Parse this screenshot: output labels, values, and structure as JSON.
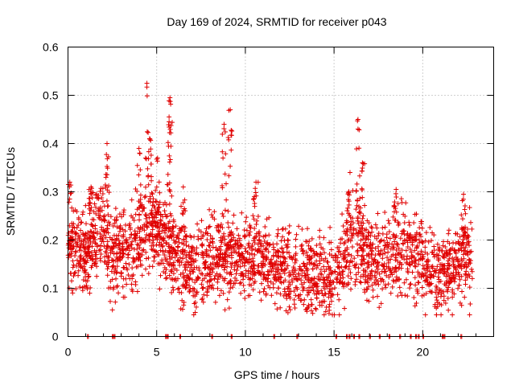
{
  "chart_data": {
    "type": "scatter",
    "title": "Day 169 of 2024, SRMTID for receiver p043",
    "xlabel": "GPS time / hours",
    "ylabel": "SRMTID / TECUs",
    "xlim": [
      0,
      24
    ],
    "ylim": [
      0,
      0.6
    ],
    "x_ticks": [
      0,
      5,
      10,
      15,
      20
    ],
    "x_tick_labels": [
      "0",
      "5",
      "10",
      "15",
      "20"
    ],
    "y_ticks": [
      0,
      0.1,
      0.2,
      0.3,
      0.4,
      0.5,
      0.6
    ],
    "y_tick_labels": [
      "0",
      "0.1",
      "0.2",
      "0.3",
      "0.4",
      "0.5",
      "0.6"
    ],
    "grid": true,
    "marker": "+",
    "color": "#e00000",
    "series": [
      {
        "name": "SRMTID",
        "baseline_profile_x": [
          0,
          0.5,
          1,
          1.5,
          2,
          2.5,
          3,
          3.5,
          4,
          4.5,
          5,
          5.5,
          6,
          6.5,
          7,
          7.5,
          8,
          8.5,
          9,
          9.5,
          10,
          10.5,
          11,
          11.5,
          12,
          12.5,
          13,
          13.5,
          14,
          14.5,
          15,
          15.5,
          16,
          16.5,
          17,
          17.5,
          18,
          18.5,
          19,
          19.5,
          20,
          20.5,
          21,
          21.5,
          22,
          22.5,
          22.8
        ],
        "baseline_profile_y": [
          0.18,
          0.19,
          0.17,
          0.2,
          0.21,
          0.16,
          0.17,
          0.18,
          0.2,
          0.22,
          0.21,
          0.19,
          0.18,
          0.15,
          0.14,
          0.15,
          0.17,
          0.16,
          0.16,
          0.17,
          0.16,
          0.17,
          0.16,
          0.15,
          0.15,
          0.14,
          0.14,
          0.13,
          0.13,
          0.13,
          0.12,
          0.16,
          0.2,
          0.19,
          0.15,
          0.17,
          0.16,
          0.17,
          0.18,
          0.17,
          0.15,
          0.13,
          0.12,
          0.14,
          0.16,
          0.17,
          0.14
        ],
        "peaks": [
          {
            "x": 0.1,
            "y": 0.32
          },
          {
            "x": 1.3,
            "y": 0.31
          },
          {
            "x": 2.2,
            "y": 0.4
          },
          {
            "x": 4.0,
            "y": 0.39
          },
          {
            "x": 4.45,
            "y": 0.525
          },
          {
            "x": 4.6,
            "y": 0.41
          },
          {
            "x": 5.05,
            "y": 0.37
          },
          {
            "x": 5.75,
            "y": 0.495
          },
          {
            "x": 5.7,
            "y": 0.445
          },
          {
            "x": 6.5,
            "y": 0.31
          },
          {
            "x": 8.8,
            "y": 0.44
          },
          {
            "x": 9.15,
            "y": 0.47
          },
          {
            "x": 10.6,
            "y": 0.32
          },
          {
            "x": 16.35,
            "y": 0.45
          },
          {
            "x": 15.9,
            "y": 0.34
          },
          {
            "x": 16.6,
            "y": 0.36
          },
          {
            "x": 18.5,
            "y": 0.305
          },
          {
            "x": 22.3,
            "y": 0.295
          }
        ],
        "zero_points_x": [
          1.1,
          2.5,
          2.6,
          5.5,
          5.6,
          6.3,
          8.1,
          9.2,
          11.6,
          12.9,
          15.1,
          15.7,
          15.85,
          16.1,
          16.4,
          17.0,
          17.55,
          18.1,
          18.7,
          19.3,
          19.6,
          19.75,
          20.0,
          21.1,
          21.2,
          22.15
        ]
      }
    ]
  }
}
